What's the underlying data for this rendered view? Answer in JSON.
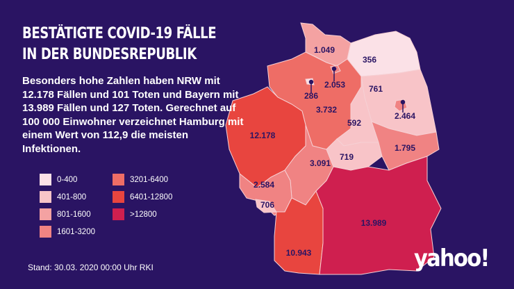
{
  "title_lines": [
    "BESTÄTIGTE COVID-19 FÄLLE",
    "IN DER BUNDESREPUBLIK"
  ],
  "description": "Besonders hohe Zahlen haben NRW mit 12.178 Fällen und 101 Toten und Bayern mit 13.989 Fällen und 127 Toten. Gerechnet auf 100 000 Einwohner verzeichnet Hamburg mit einem Wert von 112,9 die meisten Infektionen.",
  "legend": [
    {
      "label": "0-400",
      "color": "#fbe1e7"
    },
    {
      "label": "401-800",
      "color": "#f8c4c8"
    },
    {
      "label": "801-1600",
      "color": "#f4a2a2"
    },
    {
      "label": "1601-3200",
      "color": "#f08383"
    },
    {
      "label": "3201-6400",
      "color": "#ee6d66"
    },
    {
      "label": "6401-12800",
      "color": "#e8453f"
    },
    {
      "label": ">12800",
      "color": "#cf1f4f"
    }
  ],
  "states": [
    {
      "value": "1.049",
      "color": "#f4a2a2"
    },
    {
      "value": "356",
      "color": "#fbe1e7"
    },
    {
      "value": "2.053",
      "color": "#f08383"
    },
    {
      "value": "286",
      "color": "#fbe1e7"
    },
    {
      "value": "3.732",
      "color": "#ee6d66"
    },
    {
      "value": "761",
      "color": "#f8c4c8"
    },
    {
      "value": "2.464",
      "color": "#f08383"
    },
    {
      "value": "592",
      "color": "#f8c4c8"
    },
    {
      "value": "12.178",
      "color": "#e8453f"
    },
    {
      "value": "3.091",
      "color": "#f08383"
    },
    {
      "value": "719",
      "color": "#f8c4c8"
    },
    {
      "value": "1.795",
      "color": "#f08383"
    },
    {
      "value": "2.584",
      "color": "#f08383"
    },
    {
      "value": "706",
      "color": "#f8c4c8"
    },
    {
      "value": "10.943",
      "color": "#e8453f"
    },
    {
      "value": "13.989",
      "color": "#cf1f4f"
    }
  ],
  "source": "Stand: 30.03. 2020 00:00 Uhr RKI",
  "logo": "yahoo!"
}
